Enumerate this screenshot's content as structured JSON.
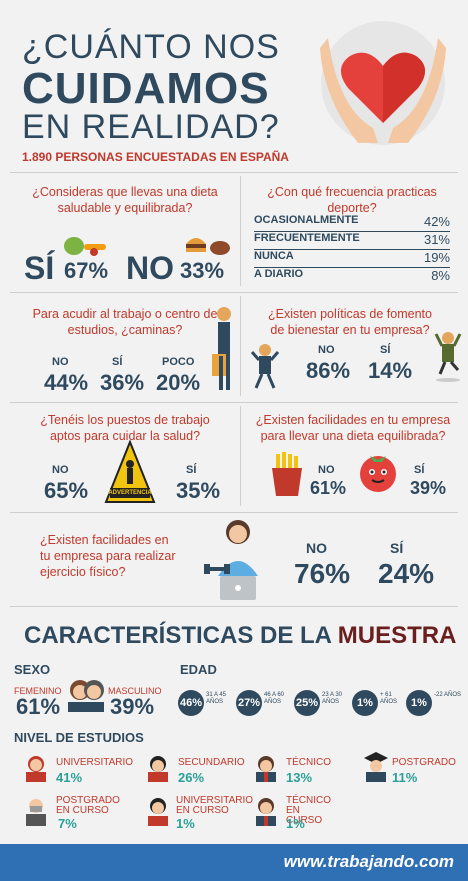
{
  "header": {
    "line1": "¿CUÁNTO NOS",
    "line2": "CUIDAMOS",
    "line3": "EN REALIDAD?",
    "subtitle": "1.890 PERSONAS ENCUESTADAS EN ESPAÑA"
  },
  "q_diet": {
    "question": "¿Consideras que llevas una dieta saludable y equilibrada?",
    "yes_label": "SÍ",
    "yes_value": "67%",
    "no_label": "NO",
    "no_value": "33%"
  },
  "q_sport": {
    "question": "¿Con qué frecuencia practicas deporte?",
    "rows": [
      {
        "label": "OCASIONALMENTE",
        "value": "42%"
      },
      {
        "label": "FRECUENTEMENTE",
        "value": "31%"
      },
      {
        "label": "NUNCA",
        "value": "19%"
      },
      {
        "label": "A DIARIO",
        "value": "8%"
      }
    ]
  },
  "q_walk": {
    "question": "Para acudir al trabajo o centro de estudios, ¿caminas?",
    "items": [
      {
        "label": "NO",
        "value": "44%"
      },
      {
        "label": "SÍ",
        "value": "36%"
      },
      {
        "label": "POCO",
        "value": "20%"
      }
    ]
  },
  "q_policies": {
    "question": "¿Existen políticas de fomento de bienestar en tu empresa?",
    "items": [
      {
        "label": "NO",
        "value": "86%"
      },
      {
        "label": "SÍ",
        "value": "14%"
      }
    ]
  },
  "q_workplace": {
    "question": "¿Tenéis los puestos de trabajo aptos para cuidar la salud?",
    "no_label": "NO",
    "no_value": "65%",
    "yes_label": "SÍ",
    "yes_value": "35%",
    "sign_text": "ADVERTENCIA"
  },
  "q_company_diet": {
    "question": "¿Existen facilidades en tu empresa para llevar una dieta equilibrada?",
    "no_label": "NO",
    "no_value": "61%",
    "yes_label": "SÍ",
    "yes_value": "39%"
  },
  "q_exercise": {
    "question": "¿Existen facilidades en tu empresa para realizar ejercicio físico?",
    "no_label": "NO",
    "no_value": "76%",
    "yes_label": "SÍ",
    "yes_value": "24%"
  },
  "sample": {
    "title_a": "CARACTERÍSTICAS DE LA",
    "title_b": "MUESTRA",
    "sex_title": "SEXO",
    "female_label": "FEMENINO",
    "female_value": "61%",
    "male_label": "MASCULINO",
    "male_value": "39%",
    "age_title": "EDAD",
    "ages": [
      {
        "value": "46%",
        "range": "31 A 45 AÑOS"
      },
      {
        "value": "27%",
        "range": "46 A 60 AÑOS"
      },
      {
        "value": "25%",
        "range": "23 A 30 AÑOS"
      },
      {
        "value": "1%",
        "range": "+ 61 AÑOS"
      },
      {
        "value": "1%",
        "range": "-22 AÑOS"
      }
    ],
    "edu_title": "NIVEL DE ESTUDIOS",
    "edu": [
      {
        "label": "UNIVERSITARIO",
        "value": "41%"
      },
      {
        "label": "SECUNDARIO",
        "value": "26%"
      },
      {
        "label": "TÉCNICO",
        "value": "13%"
      },
      {
        "label": "POSTGRADO",
        "value": "11%"
      },
      {
        "label": "POSTGRADO EN CURSO",
        "value": "7%"
      },
      {
        "label": "UNIVERSITARIO EN CURSO",
        "value": "1%"
      },
      {
        "label": "TÉCNICO EN CURSO",
        "value": "1%"
      }
    ]
  },
  "footer": {
    "site": "www.trabajando.com"
  },
  "colors": {
    "navy": "#2f4a5f",
    "red": "#c0392b",
    "teal": "#2aa198",
    "footer_blue": "#2f6fb3"
  }
}
